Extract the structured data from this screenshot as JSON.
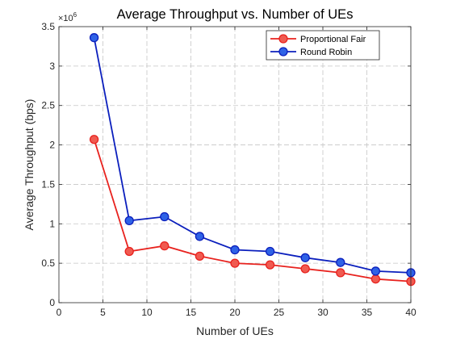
{
  "chart_data": {
    "type": "line",
    "title": "Average Throughput vs. Number of UEs",
    "xlabel": "Number of UEs",
    "ylabel": "Average Throughput (bps)",
    "y_exponent_label": "×10",
    "y_exponent_power": "6",
    "xlim": [
      0,
      40
    ],
    "ylim": [
      0,
      3.5
    ],
    "y_scale_factor": 1000000,
    "x_ticks": [
      0,
      5,
      10,
      15,
      20,
      25,
      30,
      35,
      40
    ],
    "y_ticks": [
      0,
      0.5,
      1,
      1.5,
      2,
      2.5,
      3,
      3.5
    ],
    "x_tick_labels": [
      "0",
      "5",
      "10",
      "15",
      "20",
      "25",
      "30",
      "35",
      "40"
    ],
    "y_tick_labels": [
      "0",
      "0.5",
      "1",
      "1.5",
      "2",
      "2.5",
      "3",
      "3.5"
    ],
    "grid": true,
    "legend_position": "top-right",
    "x": [
      4,
      8,
      12,
      16,
      20,
      24,
      28,
      32,
      36,
      40
    ],
    "series": [
      {
        "name": "Proportional Fair",
        "color": "#e8221e",
        "fill": "#f05a50",
        "values": [
          2.07,
          0.65,
          0.72,
          0.59,
          0.5,
          0.48,
          0.43,
          0.38,
          0.3,
          0.27
        ]
      },
      {
        "name": "Round Robin",
        "color": "#0b1fbd",
        "fill": "#2f62e6",
        "values": [
          3.36,
          1.04,
          1.09,
          0.84,
          0.67,
          0.65,
          0.57,
          0.51,
          0.4,
          0.38
        ]
      }
    ]
  }
}
